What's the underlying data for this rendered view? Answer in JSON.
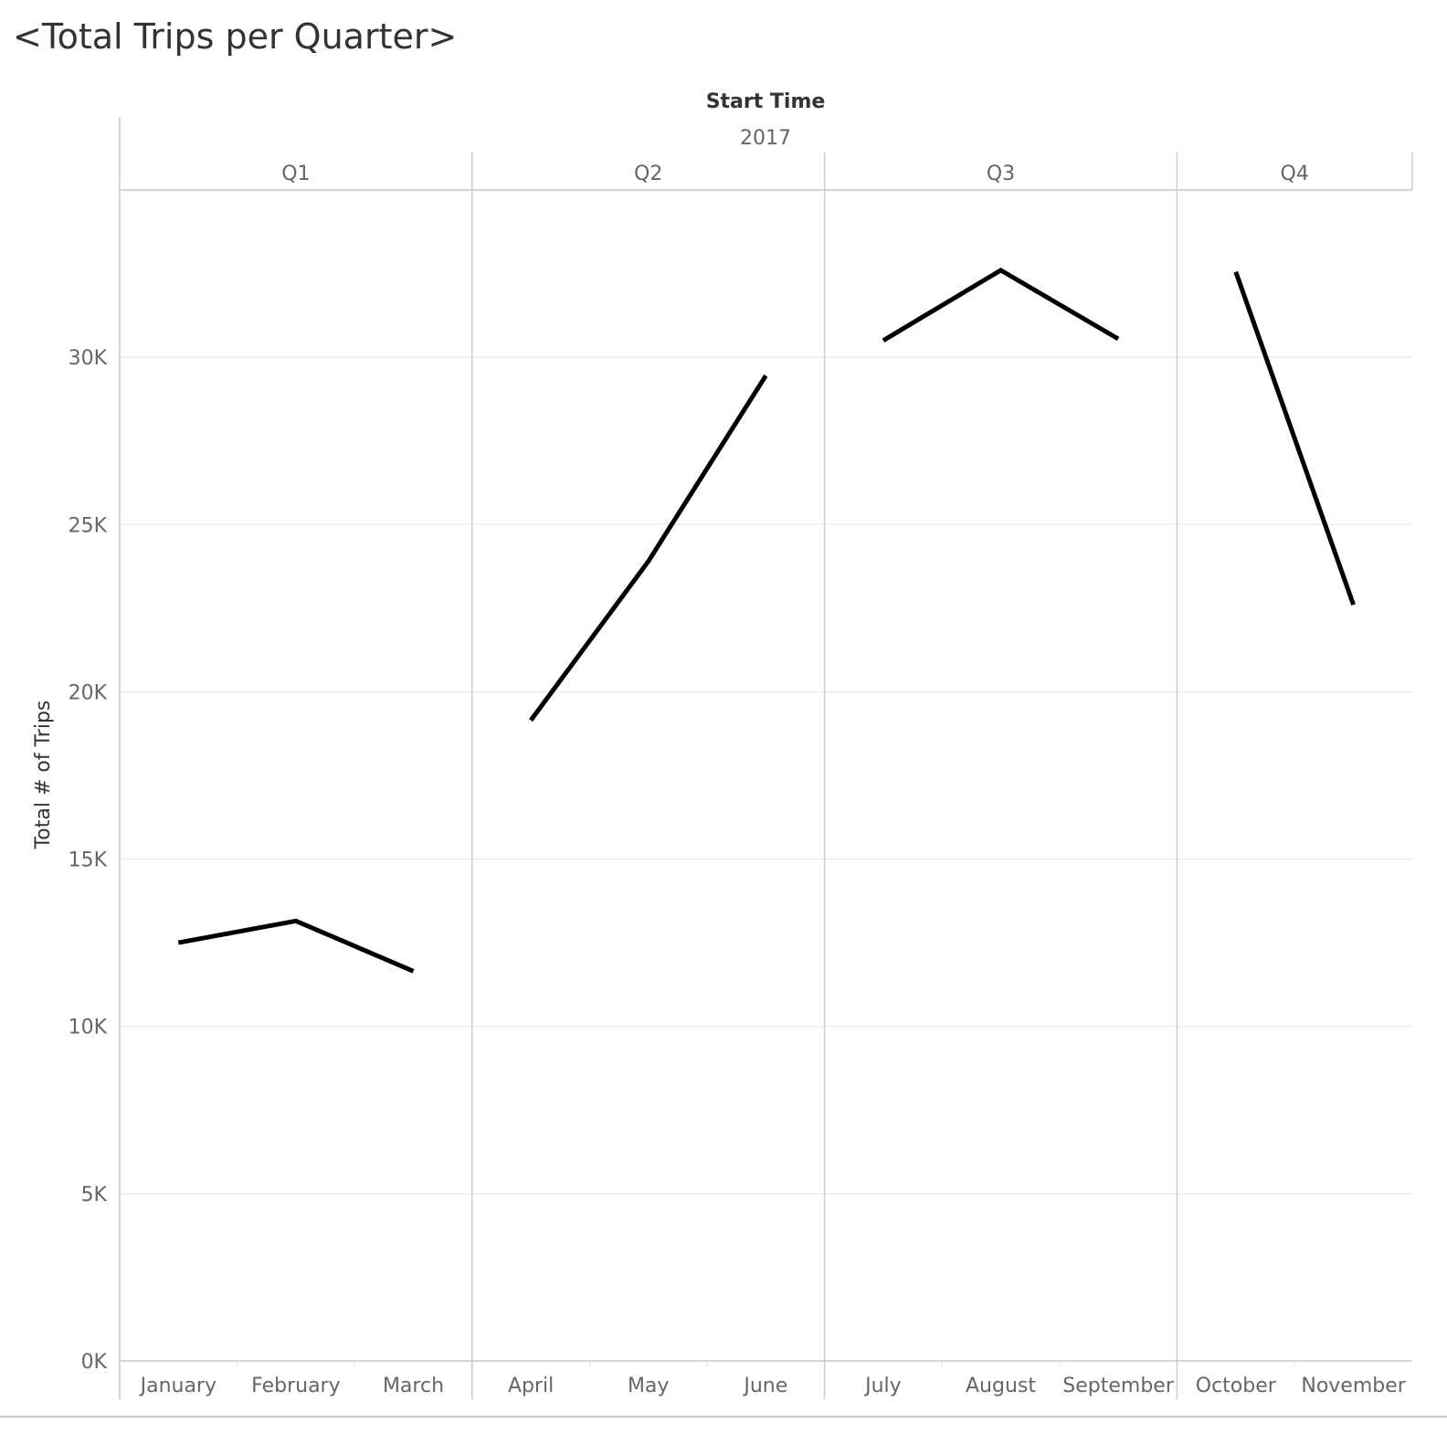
{
  "title": "<Total Trips per Quarter>",
  "chart_data": {
    "type": "line",
    "column_dimension_title": "Start Time",
    "year": "2017",
    "ylabel": "Total # of Trips",
    "ylim": [
      0,
      35000
    ],
    "y_ticks": [
      {
        "value": 0,
        "label": "0K"
      },
      {
        "value": 5000,
        "label": "5K"
      },
      {
        "value": 10000,
        "label": "10K"
      },
      {
        "value": 15000,
        "label": "15K"
      },
      {
        "value": 20000,
        "label": "20K"
      },
      {
        "value": 25000,
        "label": "25K"
      },
      {
        "value": 30000,
        "label": "30K"
      }
    ],
    "grid": true,
    "line_color": "#000000",
    "quarters": [
      {
        "label": "Q1",
        "months": [
          {
            "month": "January",
            "value": 12500
          },
          {
            "month": "February",
            "value": 13150
          },
          {
            "month": "March",
            "value": 11650
          }
        ]
      },
      {
        "label": "Q2",
        "months": [
          {
            "month": "April",
            "value": 19150
          },
          {
            "month": "May",
            "value": 23900
          },
          {
            "month": "June",
            "value": 29450
          }
        ]
      },
      {
        "label": "Q3",
        "months": [
          {
            "month": "July",
            "value": 30500
          },
          {
            "month": "August",
            "value": 32600
          },
          {
            "month": "September",
            "value": 30550
          }
        ]
      },
      {
        "label": "Q4",
        "months": [
          {
            "month": "October",
            "value": 32550
          },
          {
            "month": "November",
            "value": 22600
          }
        ]
      }
    ]
  }
}
